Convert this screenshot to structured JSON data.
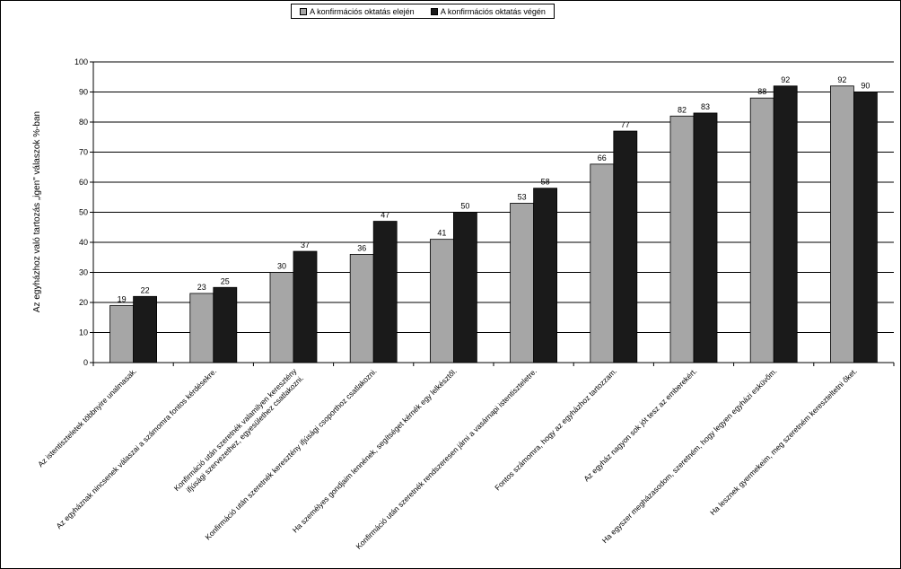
{
  "chart_data": {
    "type": "bar",
    "ylabel": "Az egyházhoz való tartozás „igen\" válaszok %-ban",
    "ylim": [
      0,
      100
    ],
    "yticks": [
      0,
      10,
      20,
      30,
      40,
      50,
      60,
      70,
      80,
      90,
      100
    ],
    "grid": true,
    "legend_position": "top-center",
    "categories": [
      [
        "Az istentiszteletek többnyire unalmasak."
      ],
      [
        "Az egyháznak nincsenek válaszai a számomra fontos kérdésekre."
      ],
      [
        "Konfirmáció után szeretnék valamilyen keresztény",
        "ifjúsági szervezethez, egyesülethez csatlakozni."
      ],
      [
        "Konfirmáció után szeretnék keresztény ifjúsági csoporthoz csatlakozni."
      ],
      [
        "Ha személyes gondjaim lennének, segítséget kérnék egy lelkésztől."
      ],
      [
        "Konfirmáció után szeretnék rendszeresen járni a vasárnapi istentiszteletre."
      ],
      [
        "Fontos számomra, hogy az egyházhoz tartozzam."
      ],
      [
        "Az egyház nagyon sok jót tesz az emberekért."
      ],
      [
        "Ha egyszer megházasodom, szeretném, hogy legyen egyházi esküvőm."
      ],
      [
        "Ha lesznek gyermekeim, meg szeretném kereszteltetni őket."
      ]
    ],
    "series": [
      {
        "name": "A konfirmációs oktatás elején",
        "color": "#a6a6a6",
        "values": [
          19,
          23,
          30,
          36,
          41,
          53,
          66,
          82,
          88,
          92
        ]
      },
      {
        "name": "A konfirmációs oktatás végén",
        "color": "#1a1a1a",
        "values": [
          22,
          25,
          37,
          47,
          50,
          58,
          77,
          83,
          92,
          90
        ]
      }
    ]
  }
}
